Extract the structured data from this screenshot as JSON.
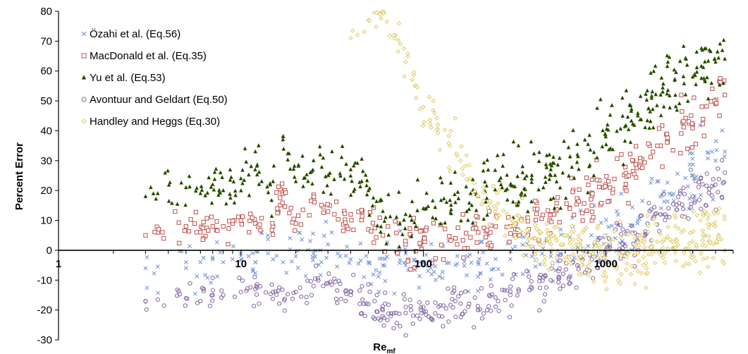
{
  "chart_data": {
    "type": "scatter",
    "title": "",
    "xlabel": "Re_mf",
    "xlabel_main": "Re",
    "xlabel_sub": "mf",
    "ylabel": "Percent Error",
    "xscale": "log",
    "xlim": [
      1,
      5000
    ],
    "ylim": [
      -30,
      80
    ],
    "y_ticks": [
      -30,
      -20,
      -10,
      0,
      10,
      20,
      30,
      40,
      50,
      60,
      70,
      80
    ],
    "x_ticks": [
      1,
      10,
      100,
      1000
    ],
    "x_tick_labels": [
      "1",
      "10",
      "100",
      "1000"
    ],
    "legend_position": "top-left",
    "series": [
      {
        "name": "Özahi et al. (Eq.56)",
        "marker": "x",
        "color": "#6f8fd6",
        "n": 260,
        "points": [
          [
            3,
            -6
          ],
          [
            3.5,
            -5.5
          ],
          [
            5,
            -4
          ],
          [
            5,
            -6
          ],
          [
            6,
            -4
          ],
          [
            7,
            -3
          ],
          [
            8,
            -4
          ],
          [
            9,
            -3
          ],
          [
            10,
            -3
          ],
          [
            11,
            -2
          ],
          [
            12,
            -4
          ],
          [
            13,
            6
          ],
          [
            15,
            -3
          ],
          [
            17,
            -4
          ],
          [
            20,
            -2
          ],
          [
            25,
            -1
          ],
          [
            30,
            2
          ],
          [
            35,
            -2
          ],
          [
            40,
            -3
          ],
          [
            50,
            -4
          ],
          [
            60,
            -5
          ],
          [
            80,
            -5
          ],
          [
            100,
            -4
          ],
          [
            150,
            -5
          ],
          [
            200,
            -4
          ],
          [
            300,
            -3
          ],
          [
            500,
            -2
          ],
          [
            700,
            1
          ],
          [
            1000,
            5
          ],
          [
            1500,
            10
          ],
          [
            2000,
            18
          ],
          [
            3000,
            25
          ],
          [
            4000,
            30
          ],
          [
            4500,
            33
          ]
        ]
      },
      {
        "name": "MacDonald et al. (Eq.35)",
        "marker": "square",
        "color": "#c0504d",
        "n": 320,
        "points": [
          [
            3,
            5
          ],
          [
            3.5,
            6
          ],
          [
            5,
            8
          ],
          [
            6,
            6
          ],
          [
            7,
            8
          ],
          [
            8,
            8
          ],
          [
            9,
            9
          ],
          [
            10,
            10
          ],
          [
            12,
            9
          ],
          [
            15,
            8
          ],
          [
            17,
            19
          ],
          [
            20,
            9
          ],
          [
            25,
            17
          ],
          [
            30,
            13
          ],
          [
            40,
            12
          ],
          [
            50,
            7
          ],
          [
            60,
            5
          ],
          [
            80,
            2
          ],
          [
            100,
            3
          ],
          [
            150,
            4
          ],
          [
            200,
            6
          ],
          [
            300,
            8
          ],
          [
            500,
            12
          ],
          [
            700,
            17
          ],
          [
            1000,
            22
          ],
          [
            1500,
            28
          ],
          [
            2000,
            35
          ],
          [
            3000,
            42
          ],
          [
            4000,
            49
          ],
          [
            4500,
            52
          ]
        ]
      },
      {
        "name": "Yu et al. (Eq.53)",
        "marker": "triangle",
        "color": "#1a3d00",
        "n": 420,
        "points": [
          [
            3,
            18
          ],
          [
            3.5,
            19
          ],
          [
            5,
            21
          ],
          [
            6,
            19
          ],
          [
            7,
            22
          ],
          [
            8,
            20
          ],
          [
            10,
            24
          ],
          [
            12,
            33
          ],
          [
            13,
            23
          ],
          [
            15,
            23
          ],
          [
            17,
            37
          ],
          [
            20,
            23
          ],
          [
            25,
            30
          ],
          [
            30,
            25
          ],
          [
            40,
            27
          ],
          [
            50,
            20
          ],
          [
            60,
            13
          ],
          [
            80,
            12
          ],
          [
            100,
            14
          ],
          [
            150,
            16
          ],
          [
            200,
            18
          ],
          [
            300,
            22
          ],
          [
            500,
            27
          ],
          [
            700,
            32
          ],
          [
            1000,
            38
          ],
          [
            1500,
            45
          ],
          [
            2000,
            52
          ],
          [
            3000,
            58
          ],
          [
            4000,
            63
          ],
          [
            4500,
            64
          ]
        ]
      },
      {
        "name": "Avontuur and Geldart (Eq.50)",
        "marker": "circle",
        "color": "#8064a2",
        "n": 360,
        "points": [
          [
            3,
            -17
          ],
          [
            3.5,
            -16.5
          ],
          [
            5,
            -16
          ],
          [
            6,
            -17
          ],
          [
            7,
            -15
          ],
          [
            8,
            -15
          ],
          [
            10,
            -14
          ],
          [
            12,
            -13
          ],
          [
            15,
            -14
          ],
          [
            20,
            -14
          ],
          [
            25,
            -12
          ],
          [
            30,
            -11
          ],
          [
            40,
            -15
          ],
          [
            50,
            -18
          ],
          [
            60,
            -20
          ],
          [
            80,
            -21
          ],
          [
            100,
            -19
          ],
          [
            150,
            -17
          ],
          [
            200,
            -20
          ],
          [
            300,
            -15
          ],
          [
            500,
            -10
          ],
          [
            700,
            -5
          ],
          [
            1000,
            0
          ],
          [
            1500,
            5
          ],
          [
            2000,
            12
          ],
          [
            3000,
            18
          ],
          [
            4000,
            22
          ],
          [
            4500,
            26
          ]
        ]
      },
      {
        "name": "Handley and Heggs (Eq.30)",
        "marker": "diamond",
        "color": "#e0cc66",
        "n": 380,
        "points": [
          [
            40,
            71
          ],
          [
            50,
            77
          ],
          [
            60,
            80
          ],
          [
            70,
            72
          ],
          [
            80,
            63
          ],
          [
            90,
            55
          ],
          [
            100,
            48
          ],
          [
            120,
            42
          ],
          [
            140,
            35
          ],
          [
            160,
            30
          ],
          [
            180,
            24
          ],
          [
            200,
            18
          ],
          [
            250,
            14
          ],
          [
            300,
            8
          ],
          [
            400,
            4
          ],
          [
            500,
            2
          ],
          [
            700,
            0
          ],
          [
            1000,
            -2
          ],
          [
            1500,
            -1
          ],
          [
            2000,
            0
          ],
          [
            3000,
            3
          ],
          [
            4000,
            8
          ],
          [
            4500,
            0
          ]
        ]
      }
    ]
  }
}
